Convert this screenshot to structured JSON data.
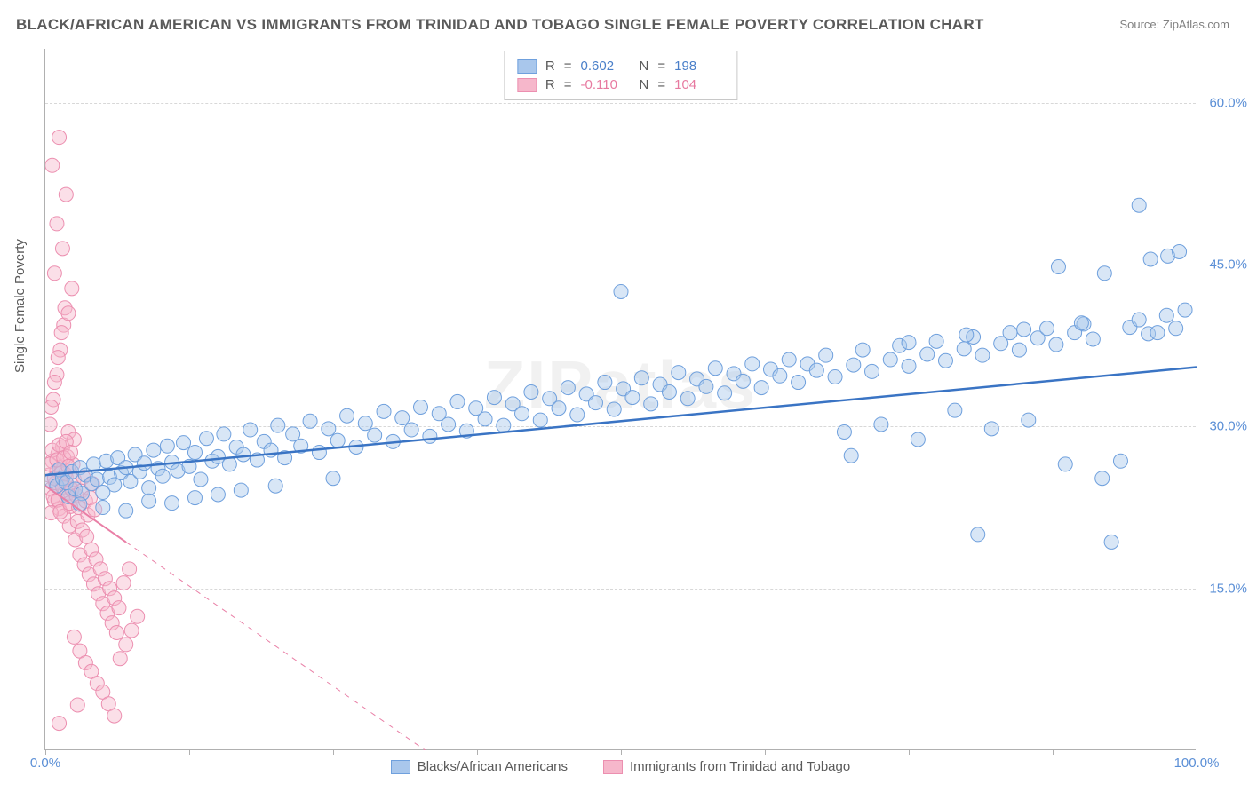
{
  "title": "BLACK/AFRICAN AMERICAN VS IMMIGRANTS FROM TRINIDAD AND TOBAGO SINGLE FEMALE POVERTY CORRELATION CHART",
  "source_label": "Source: ",
  "source_value": "ZipAtlas.com",
  "ylabel": "Single Female Poverty",
  "watermark": "ZIPatlas",
  "chart": {
    "type": "scatter",
    "xlim": [
      0,
      100
    ],
    "ylim": [
      0,
      65
    ],
    "y_gridlines": [
      15,
      30,
      45,
      60
    ],
    "y_tick_labels": [
      "15.0%",
      "30.0%",
      "45.0%",
      "60.0%"
    ],
    "x_ticks": [
      0,
      12.5,
      25,
      37.5,
      50,
      62.5,
      75,
      87.5,
      100
    ],
    "x_tick_labels": {
      "0": "0.0%",
      "100": "100.0%"
    },
    "background_color": "#ffffff",
    "grid_color": "#d8d8d8",
    "marker_radius": 8,
    "marker_opacity": 0.45,
    "series": [
      {
        "key": "blue",
        "label": "Blacks/African Americans",
        "fill": "#a9c7ec",
        "stroke": "#6fa0dd",
        "line_color": "#3a74c4",
        "line_width": 2.5,
        "R": "0.602",
        "N": "198",
        "trend": {
          "x1": 0,
          "y1": 25.5,
          "x2": 100,
          "y2": 35.5,
          "dash": "none"
        }
      },
      {
        "key": "pink",
        "label": "Immigrants from Trinidad and Tobago",
        "fill": "#f6b7cb",
        "stroke": "#ec8fb0",
        "line_color": "#e97fa6",
        "line_width": 2,
        "R": "-0.110",
        "N": "104",
        "trend": {
          "x1": 0,
          "y1": 24.5,
          "x2": 33,
          "y2": 0,
          "dash": "solid_then_dash",
          "solid_until_x": 7
        }
      }
    ],
    "points_blue": [
      [
        0.5,
        25
      ],
      [
        1,
        24.5
      ],
      [
        1.2,
        26
      ],
      [
        1.5,
        25.2
      ],
      [
        1.8,
        24.8
      ],
      [
        2,
        23.5
      ],
      [
        2.3,
        25.8
      ],
      [
        2.6,
        24.2
      ],
      [
        3,
        26.2
      ],
      [
        3.2,
        23.8
      ],
      [
        3.5,
        25.5
      ],
      [
        4,
        24.7
      ],
      [
        4.2,
        26.5
      ],
      [
        4.5,
        25.1
      ],
      [
        5,
        23.9
      ],
      [
        5.3,
        26.8
      ],
      [
        5.6,
        25.3
      ],
      [
        6,
        24.6
      ],
      [
        6.3,
        27.1
      ],
      [
        6.6,
        25.7
      ],
      [
        7,
        26.2
      ],
      [
        7.4,
        24.9
      ],
      [
        7.8,
        27.4
      ],
      [
        8.2,
        25.8
      ],
      [
        8.6,
        26.6
      ],
      [
        9,
        24.3
      ],
      [
        9.4,
        27.8
      ],
      [
        9.8,
        26.1
      ],
      [
        10.2,
        25.4
      ],
      [
        10.6,
        28.2
      ],
      [
        11,
        26.7
      ],
      [
        11.5,
        25.9
      ],
      [
        12,
        28.5
      ],
      [
        12.5,
        26.3
      ],
      [
        13,
        27.6
      ],
      [
        13.5,
        25.1
      ],
      [
        14,
        28.9
      ],
      [
        14.5,
        26.8
      ],
      [
        15,
        27.2
      ],
      [
        15.5,
        29.3
      ],
      [
        16,
        26.5
      ],
      [
        16.6,
        28.1
      ],
      [
        17.2,
        27.4
      ],
      [
        17.8,
        29.7
      ],
      [
        18.4,
        26.9
      ],
      [
        19,
        28.6
      ],
      [
        19.6,
        27.8
      ],
      [
        20.2,
        30.1
      ],
      [
        20.8,
        27.1
      ],
      [
        21.5,
        29.3
      ],
      [
        22.2,
        28.2
      ],
      [
        23,
        30.5
      ],
      [
        23.8,
        27.6
      ],
      [
        24.6,
        29.8
      ],
      [
        25.4,
        28.7
      ],
      [
        26.2,
        31
      ],
      [
        27,
        28.1
      ],
      [
        27.8,
        30.3
      ],
      [
        28.6,
        29.2
      ],
      [
        29.4,
        31.4
      ],
      [
        30.2,
        28.6
      ],
      [
        31,
        30.8
      ],
      [
        31.8,
        29.7
      ],
      [
        32.6,
        31.8
      ],
      [
        33.4,
        29.1
      ],
      [
        34.2,
        31.2
      ],
      [
        35,
        30.2
      ],
      [
        35.8,
        32.3
      ],
      [
        36.6,
        29.6
      ],
      [
        37.4,
        31.7
      ],
      [
        38.2,
        30.7
      ],
      [
        39,
        32.7
      ],
      [
        39.8,
        30.1
      ],
      [
        40.6,
        32.1
      ],
      [
        41.4,
        31.2
      ],
      [
        42.2,
        33.2
      ],
      [
        43,
        30.6
      ],
      [
        43.8,
        32.6
      ],
      [
        44.6,
        31.7
      ],
      [
        45.4,
        33.6
      ],
      [
        46.2,
        31.1
      ],
      [
        47,
        33
      ],
      [
        47.8,
        32.2
      ],
      [
        48.6,
        34.1
      ],
      [
        49.4,
        31.6
      ],
      [
        50.2,
        33.5
      ],
      [
        51,
        32.7
      ],
      [
        51.8,
        34.5
      ],
      [
        52.6,
        32.1
      ],
      [
        53.4,
        33.9
      ],
      [
        50,
        42.5
      ],
      [
        54.2,
        33.2
      ],
      [
        55,
        35
      ],
      [
        55.8,
        32.6
      ],
      [
        56.6,
        34.4
      ],
      [
        57.4,
        33.7
      ],
      [
        58.2,
        35.4
      ],
      [
        59,
        33.1
      ],
      [
        59.8,
        34.9
      ],
      [
        60.6,
        34.2
      ],
      [
        61.4,
        35.8
      ],
      [
        62.2,
        33.6
      ],
      [
        63,
        35.3
      ],
      [
        63.8,
        34.7
      ],
      [
        64.6,
        36.2
      ],
      [
        65.4,
        34.1
      ],
      [
        66.2,
        35.8
      ],
      [
        67,
        35.2
      ],
      [
        67.8,
        36.6
      ],
      [
        68.6,
        34.6
      ],
      [
        69.4,
        29.5
      ],
      [
        70.2,
        35.7
      ],
      [
        71,
        37.1
      ],
      [
        71.8,
        35.1
      ],
      [
        72.6,
        30.2
      ],
      [
        73.4,
        36.2
      ],
      [
        74.2,
        37.5
      ],
      [
        75,
        35.6
      ],
      [
        75.8,
        28.8
      ],
      [
        76.6,
        36.7
      ],
      [
        77.4,
        37.9
      ],
      [
        78.2,
        36.1
      ],
      [
        79,
        31.5
      ],
      [
        79.8,
        37.2
      ],
      [
        80.6,
        38.3
      ],
      [
        81.4,
        36.6
      ],
      [
        82.2,
        29.8
      ],
      [
        83,
        37.7
      ],
      [
        83.8,
        38.7
      ],
      [
        84.6,
        37.1
      ],
      [
        85.4,
        30.6
      ],
      [
        86.2,
        38.2
      ],
      [
        87,
        39.1
      ],
      [
        87.8,
        37.6
      ],
      [
        88.6,
        26.5
      ],
      [
        89.4,
        38.7
      ],
      [
        90.2,
        39.5
      ],
      [
        91,
        38.1
      ],
      [
        81,
        20
      ],
      [
        91.8,
        25.2
      ],
      [
        92.6,
        19.3
      ],
      [
        93.4,
        26.8
      ],
      [
        94.2,
        39.2
      ],
      [
        95,
        39.9
      ],
      [
        95.8,
        38.6
      ],
      [
        88,
        44.8
      ],
      [
        92,
        44.2
      ],
      [
        96,
        45.5
      ],
      [
        97.5,
        45.8
      ],
      [
        98.5,
        46.2
      ],
      [
        95,
        50.5
      ],
      [
        96.6,
        38.7
      ],
      [
        97.4,
        40.3
      ],
      [
        98.2,
        39.1
      ],
      [
        99,
        40.8
      ],
      [
        70,
        27.3
      ],
      [
        75,
        37.8
      ],
      [
        80,
        38.5
      ],
      [
        85,
        39
      ],
      [
        90,
        39.6
      ],
      [
        3,
        22.8
      ],
      [
        5,
        22.5
      ],
      [
        7,
        22.2
      ],
      [
        9,
        23.1
      ],
      [
        11,
        22.9
      ],
      [
        13,
        23.4
      ],
      [
        15,
        23.7
      ],
      [
        17,
        24.1
      ],
      [
        20,
        24.5
      ],
      [
        25,
        25.2
      ]
    ],
    "points_pink": [
      [
        0.3,
        25.5
      ],
      [
        0.5,
        24.2
      ],
      [
        0.6,
        26.8
      ],
      [
        0.8,
        23.1
      ],
      [
        1,
        25.9
      ],
      [
        1.1,
        27.5
      ],
      [
        1.2,
        22.4
      ],
      [
        1.3,
        24.8
      ],
      [
        1.4,
        26.2
      ],
      [
        1.5,
        28.1
      ],
      [
        1.6,
        21.7
      ],
      [
        1.7,
        23.9
      ],
      [
        1.8,
        25.3
      ],
      [
        1.9,
        27.2
      ],
      [
        2,
        29.5
      ],
      [
        2.1,
        20.8
      ],
      [
        2.2,
        22.6
      ],
      [
        2.3,
        24.1
      ],
      [
        2.4,
        26.5
      ],
      [
        2.5,
        28.8
      ],
      [
        0.4,
        30.2
      ],
      [
        0.7,
        32.5
      ],
      [
        1,
        34.8
      ],
      [
        1.3,
        37.1
      ],
      [
        1.6,
        39.4
      ],
      [
        0.5,
        31.8
      ],
      [
        0.8,
        34.1
      ],
      [
        1.1,
        36.4
      ],
      [
        1.4,
        38.7
      ],
      [
        1.7,
        41
      ],
      [
        2.6,
        19.5
      ],
      [
        2.8,
        21.2
      ],
      [
        3,
        18.1
      ],
      [
        3.2,
        20.4
      ],
      [
        3.4,
        17.2
      ],
      [
        3.6,
        19.8
      ],
      [
        3.8,
        16.3
      ],
      [
        4,
        18.6
      ],
      [
        4.2,
        15.4
      ],
      [
        4.4,
        17.7
      ],
      [
        4.6,
        14.5
      ],
      [
        4.8,
        16.8
      ],
      [
        5,
        13.6
      ],
      [
        5.2,
        15.9
      ],
      [
        5.4,
        12.7
      ],
      [
        5.6,
        15
      ],
      [
        5.8,
        11.8
      ],
      [
        6,
        14.1
      ],
      [
        6.2,
        10.9
      ],
      [
        6.4,
        13.2
      ],
      [
        2,
        40.5
      ],
      [
        2.3,
        42.8
      ],
      [
        0.8,
        44.2
      ],
      [
        1.5,
        46.5
      ],
      [
        1,
        48.8
      ],
      [
        1.8,
        51.5
      ],
      [
        0.6,
        54.2
      ],
      [
        1.2,
        56.8
      ],
      [
        2.5,
        10.5
      ],
      [
        3,
        9.2
      ],
      [
        3.5,
        8.1
      ],
      [
        4,
        7.3
      ],
      [
        4.5,
        6.2
      ],
      [
        5,
        5.4
      ],
      [
        5.5,
        4.3
      ],
      [
        6,
        3.2
      ],
      [
        6.5,
        8.5
      ],
      [
        7,
        9.8
      ],
      [
        7.5,
        11.1
      ],
      [
        8,
        12.4
      ],
      [
        0.5,
        22
      ],
      [
        0.7,
        23.5
      ],
      [
        0.9,
        24.8
      ],
      [
        1.1,
        23.2
      ],
      [
        1.3,
        22.1
      ],
      [
        1.5,
        24.4
      ],
      [
        1.7,
        25.6
      ],
      [
        1.9,
        23.8
      ],
      [
        2.1,
        22.9
      ],
      [
        2.3,
        24.2
      ],
      [
        2.5,
        25.1
      ],
      [
        2.7,
        23.6
      ],
      [
        2.9,
        22.5
      ],
      [
        3.1,
        24
      ],
      [
        3.3,
        25.3
      ],
      [
        3.5,
        23.1
      ],
      [
        3.7,
        21.8
      ],
      [
        3.9,
        23.4
      ],
      [
        4.1,
        24.7
      ],
      [
        4.3,
        22.3
      ],
      [
        0.4,
        26.5
      ],
      [
        0.6,
        27.8
      ],
      [
        0.8,
        25.2
      ],
      [
        1,
        26.9
      ],
      [
        1.2,
        28.3
      ],
      [
        1.4,
        25.7
      ],
      [
        1.6,
        27.1
      ],
      [
        1.8,
        28.6
      ],
      [
        2,
        26.3
      ],
      [
        2.2,
        27.6
      ],
      [
        2.8,
        4.2
      ],
      [
        6.8,
        15.5
      ],
      [
        7.3,
        16.8
      ],
      [
        1.2,
        2.5
      ]
    ]
  },
  "legend_top": {
    "R_label": "R",
    "N_label": "N",
    "eq": "="
  }
}
